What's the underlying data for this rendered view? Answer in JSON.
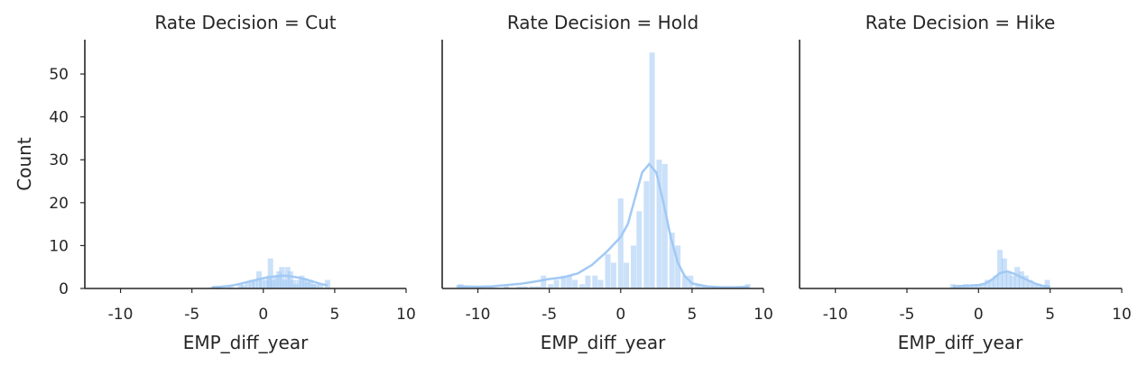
{
  "chart_data": [
    {
      "type": "bar",
      "title": "Rate Decision = Cut",
      "xlabel": "EMP_diff_year",
      "ylabel": "Count",
      "xlim": [
        -12.5,
        10
      ],
      "ylim": [
        0,
        58
      ],
      "xticks": [
        "-10",
        "-5",
        "0",
        "5",
        "10"
      ],
      "yticks": [
        "0",
        "10",
        "20",
        "30",
        "40",
        "50"
      ],
      "grid": false,
      "bar_color": "#a1c9f4",
      "bins": [
        {
          "x": -3.6,
          "count": 0.3
        },
        {
          "x": -3.1,
          "count": 0.3
        },
        {
          "x": -2.3,
          "count": 0.5
        },
        {
          "x": -1.6,
          "count": 1.0
        },
        {
          "x": -1.4,
          "count": 0.8
        },
        {
          "x": -1.1,
          "count": 1.3
        },
        {
          "x": -0.8,
          "count": 2.0
        },
        {
          "x": -0.6,
          "count": 2.0
        },
        {
          "x": -0.3,
          "count": 4.0
        },
        {
          "x": -0.1,
          "count": 2.0
        },
        {
          "x": 0.2,
          "count": 2.0
        },
        {
          "x": 0.4,
          "count": 3.0
        },
        {
          "x": 0.5,
          "count": 7.0
        },
        {
          "x": 0.7,
          "count": 2.0
        },
        {
          "x": 0.9,
          "count": 3.0
        },
        {
          "x": 1.1,
          "count": 4.0
        },
        {
          "x": 1.3,
          "count": 5.0
        },
        {
          "x": 1.5,
          "count": 2.0
        },
        {
          "x": 1.7,
          "count": 5.0
        },
        {
          "x": 1.9,
          "count": 4.0
        },
        {
          "x": 2.1,
          "count": 2.0
        },
        {
          "x": 2.3,
          "count": 1.0
        },
        {
          "x": 2.5,
          "count": 2.0
        },
        {
          "x": 2.7,
          "count": 3.0
        },
        {
          "x": 2.9,
          "count": 2.0
        },
        {
          "x": 3.1,
          "count": 1.5
        },
        {
          "x": 3.3,
          "count": 2.0
        },
        {
          "x": 3.5,
          "count": 1.0
        },
        {
          "x": 3.7,
          "count": 1.0
        },
        {
          "x": 4.0,
          "count": 1.0
        },
        {
          "x": 4.5,
          "count": 2.0
        }
      ],
      "kde": [
        {
          "x": -3.6,
          "y": 0.3
        },
        {
          "x": -3,
          "y": 0.4
        },
        {
          "x": -2.5,
          "y": 0.55
        },
        {
          "x": -2,
          "y": 0.8
        },
        {
          "x": -1.5,
          "y": 1.2
        },
        {
          "x": -1,
          "y": 1.6
        },
        {
          "x": -0.5,
          "y": 2.0
        },
        {
          "x": 0,
          "y": 2.4
        },
        {
          "x": 0.5,
          "y": 2.7
        },
        {
          "x": 1,
          "y": 2.9
        },
        {
          "x": 1.5,
          "y": 3.0
        },
        {
          "x": 2,
          "y": 2.8
        },
        {
          "x": 2.5,
          "y": 2.5
        },
        {
          "x": 3,
          "y": 2.1
        },
        {
          "x": 3.5,
          "y": 1.6
        },
        {
          "x": 4,
          "y": 1.1
        },
        {
          "x": 4.5,
          "y": 0.7
        }
      ]
    },
    {
      "type": "bar",
      "title": "Rate Decision = Hold",
      "xlabel": "EMP_diff_year",
      "ylabel": "",
      "xlim": [
        -12.5,
        10
      ],
      "ylim": [
        0,
        58
      ],
      "xticks": [
        "-10",
        "-5",
        "0",
        "5",
        "10"
      ],
      "yticks": [],
      "grid": false,
      "bar_color": "#a1c9f4",
      "bins": [
        {
          "x": -11.2,
          "count": 1
        },
        {
          "x": -10.8,
          "count": 0.5
        },
        {
          "x": -9.9,
          "count": 0.3
        },
        {
          "x": -9.0,
          "count": 0.3
        },
        {
          "x": -8.0,
          "count": 0.5
        },
        {
          "x": -7.1,
          "count": 0.5
        },
        {
          "x": -6.7,
          "count": 0.5
        },
        {
          "x": -6.2,
          "count": 0.5
        },
        {
          "x": -5.8,
          "count": 0.5
        },
        {
          "x": -5.4,
          "count": 3
        },
        {
          "x": -4.9,
          "count": 1
        },
        {
          "x": -4.5,
          "count": 2
        },
        {
          "x": -4.0,
          "count": 3
        },
        {
          "x": -3.6,
          "count": 3
        },
        {
          "x": -3.2,
          "count": 2
        },
        {
          "x": -2.7,
          "count": 1
        },
        {
          "x": -2.3,
          "count": 3
        },
        {
          "x": -1.8,
          "count": 3
        },
        {
          "x": -1.4,
          "count": 2
        },
        {
          "x": -0.9,
          "count": 8
        },
        {
          "x": -0.5,
          "count": 6
        },
        {
          "x": 0.0,
          "count": 21
        },
        {
          "x": 0.4,
          "count": 6
        },
        {
          "x": 0.9,
          "count": 10
        },
        {
          "x": 1.3,
          "count": 18
        },
        {
          "x": 1.8,
          "count": 25
        },
        {
          "x": 2.2,
          "count": 55
        },
        {
          "x": 2.7,
          "count": 30
        },
        {
          "x": 3.1,
          "count": 29
        },
        {
          "x": 3.6,
          "count": 13
        },
        {
          "x": 4.0,
          "count": 10
        },
        {
          "x": 4.5,
          "count": 3
        },
        {
          "x": 4.9,
          "count": 3
        },
        {
          "x": 5.4,
          "count": 1
        },
        {
          "x": 5.8,
          "count": 0.5
        },
        {
          "x": 6.7,
          "count": 0.5
        },
        {
          "x": 8.9,
          "count": 1
        }
      ],
      "kde": [
        {
          "x": -11.5,
          "y": 0.5
        },
        {
          "x": -10,
          "y": 0.4
        },
        {
          "x": -9,
          "y": 0.5
        },
        {
          "x": -8,
          "y": 0.8
        },
        {
          "x": -7,
          "y": 1.1
        },
        {
          "x": -6,
          "y": 1.6
        },
        {
          "x": -5,
          "y": 2.2
        },
        {
          "x": -4,
          "y": 2.6
        },
        {
          "x": -3,
          "y": 3.5
        },
        {
          "x": -2,
          "y": 5.5
        },
        {
          "x": -1,
          "y": 8.5
        },
        {
          "x": 0,
          "y": 12
        },
        {
          "x": 0.5,
          "y": 15
        },
        {
          "x": 1,
          "y": 21
        },
        {
          "x": 1.5,
          "y": 27
        },
        {
          "x": 2,
          "y": 29
        },
        {
          "x": 2.5,
          "y": 27
        },
        {
          "x": 3,
          "y": 20
        },
        {
          "x": 3.5,
          "y": 12
        },
        {
          "x": 4,
          "y": 6
        },
        {
          "x": 4.5,
          "y": 2.8
        },
        {
          "x": 5,
          "y": 1.2
        },
        {
          "x": 6,
          "y": 0.5
        },
        {
          "x": 7,
          "y": 0.3
        },
        {
          "x": 8,
          "y": 0.3
        },
        {
          "x": 9,
          "y": 0.4
        }
      ]
    },
    {
      "type": "bar",
      "title": "Rate Decision = Hike",
      "xlabel": "EMP_diff_year",
      "ylabel": "",
      "xlim": [
        -12.5,
        10
      ],
      "ylim": [
        0,
        58
      ],
      "xticks": [
        "-10",
        "-5",
        "0",
        "5",
        "10"
      ],
      "yticks": [],
      "grid": false,
      "bar_color": "#a1c9f4",
      "bins": [
        {
          "x": -1.8,
          "count": 1
        },
        {
          "x": -1.5,
          "count": 0.5
        },
        {
          "x": -1.2,
          "count": 0.5
        },
        {
          "x": -0.9,
          "count": 1
        },
        {
          "x": -0.6,
          "count": 0.5
        },
        {
          "x": -0.3,
          "count": 1
        },
        {
          "x": 0.0,
          "count": 1
        },
        {
          "x": 0.3,
          "count": 1
        },
        {
          "x": 0.6,
          "count": 2
        },
        {
          "x": 0.9,
          "count": 2
        },
        {
          "x": 1.2,
          "count": 3
        },
        {
          "x": 1.5,
          "count": 9
        },
        {
          "x": 1.8,
          "count": 7
        },
        {
          "x": 2.1,
          "count": 4
        },
        {
          "x": 2.4,
          "count": 3
        },
        {
          "x": 2.7,
          "count": 5
        },
        {
          "x": 3.0,
          "count": 4
        },
        {
          "x": 3.3,
          "count": 3
        },
        {
          "x": 3.6,
          "count": 2
        },
        {
          "x": 3.9,
          "count": 1
        },
        {
          "x": 4.2,
          "count": 1
        },
        {
          "x": 4.5,
          "count": 0.5
        },
        {
          "x": 4.8,
          "count": 2
        }
      ],
      "kde": [
        {
          "x": -1.8,
          "y": 0.5
        },
        {
          "x": -1,
          "y": 0.6
        },
        {
          "x": 0,
          "y": 0.8
        },
        {
          "x": 0.5,
          "y": 1.2
        },
        {
          "x": 1,
          "y": 2.2
        },
        {
          "x": 1.5,
          "y": 3.6
        },
        {
          "x": 2,
          "y": 4.0
        },
        {
          "x": 2.5,
          "y": 3.4
        },
        {
          "x": 3,
          "y": 2.6
        },
        {
          "x": 3.5,
          "y": 1.8
        },
        {
          "x": 4,
          "y": 1.1
        },
        {
          "x": 4.5,
          "y": 0.6
        },
        {
          "x": 5,
          "y": 0.4
        }
      ]
    }
  ]
}
